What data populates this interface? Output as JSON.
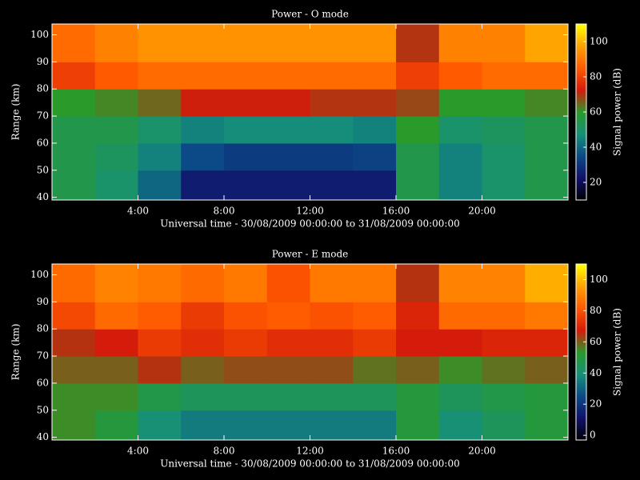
{
  "chart_data": [
    {
      "type": "heatmap",
      "title": "Power - O mode",
      "xlabel": "Universal time - 30/08/2009 00:00:00 to 31/08/2009 00:00:00",
      "ylabel": "Range (km)",
      "colorbar_label": "Signal power (dB)",
      "xlim": [
        0,
        24
      ],
      "ylim": [
        39,
        104
      ],
      "zlim": [
        10,
        110
      ],
      "xticks": [
        {
          "value": 4,
          "label": "4:00"
        },
        {
          "value": 8,
          "label": "8:00"
        },
        {
          "value": 12,
          "label": "12:00"
        },
        {
          "value": 16,
          "label": "16:00"
        },
        {
          "value": 20,
          "label": "20:00"
        }
      ],
      "yticks": [
        40,
        50,
        60,
        70,
        80,
        90,
        100
      ],
      "zticks": [
        20,
        40,
        60,
        80,
        100
      ],
      "x_bins": [
        0,
        2,
        4,
        6,
        8,
        10,
        12,
        14,
        16,
        18,
        20,
        22,
        24
      ],
      "y_bins": [
        39,
        50,
        60,
        70,
        80,
        90,
        104
      ],
      "colormap": [
        "#000000",
        "#10106a",
        "#0b4a86",
        "#16907a",
        "#2a9a2a",
        "#d41a0a",
        "#ff5a00",
        "#ffa000",
        "#ffff00"
      ],
      "values": [
        [
          55,
          50,
          40,
          25,
          25,
          25,
          25,
          25,
          55,
          45,
          50,
          55
        ],
        [
          55,
          52,
          45,
          35,
          32,
          32,
          32,
          33,
          55,
          45,
          50,
          55
        ],
        [
          55,
          55,
          50,
          45,
          47,
          47,
          47,
          45,
          60,
          50,
          52,
          55
        ],
        [
          60,
          62,
          65,
          72,
          72,
          72,
          70,
          70,
          68,
          60,
          60,
          62
        ],
        [
          80,
          85,
          88,
          88,
          88,
          88,
          88,
          88,
          80,
          85,
          88,
          88
        ],
        [
          88,
          92,
          95,
          95,
          95,
          95,
          95,
          95,
          70,
          92,
          92,
          98
        ]
      ]
    },
    {
      "type": "heatmap",
      "title": "Power - E mode",
      "xlabel": "Universal time - 30/08/2009 00:00:00 to 31/08/2009 00:00:00",
      "ylabel": "Range (km)",
      "colorbar_label": "Signal power (dB)",
      "xlim": [
        0,
        24
      ],
      "ylim": [
        39,
        104
      ],
      "zlim": [
        -3,
        110
      ],
      "xticks": [
        {
          "value": 4,
          "label": "4:00"
        },
        {
          "value": 8,
          "label": "8:00"
        },
        {
          "value": 12,
          "label": "12:00"
        },
        {
          "value": 16,
          "label": "16:00"
        },
        {
          "value": 20,
          "label": "20:00"
        }
      ],
      "yticks": [
        40,
        50,
        60,
        70,
        80,
        90,
        100
      ],
      "zticks": [
        0,
        20,
        40,
        60,
        80,
        100
      ],
      "x_bins": [
        0,
        2,
        4,
        6,
        8,
        10,
        12,
        14,
        16,
        18,
        20,
        22,
        24
      ],
      "y_bins": [
        39,
        50,
        60,
        70,
        80,
        90,
        104
      ],
      "colormap": [
        "#000000",
        "#10106a",
        "#0b4a86",
        "#16907a",
        "#2a9a2a",
        "#d41a0a",
        "#ff5a00",
        "#ffa000",
        "#ffff00"
      ],
      "values": [
        [
          55,
          50,
          40,
          35,
          35,
          35,
          35,
          35,
          50,
          40,
          45,
          50
        ],
        [
          55,
          55,
          48,
          45,
          45,
          45,
          45,
          45,
          50,
          45,
          48,
          50
        ],
        [
          60,
          60,
          65,
          60,
          62,
          62,
          62,
          58,
          60,
          55,
          58,
          60
        ],
        [
          65,
          68,
          75,
          72,
          75,
          72,
          72,
          75,
          68,
          68,
          70,
          70
        ],
        [
          78,
          85,
          82,
          75,
          80,
          82,
          80,
          82,
          70,
          85,
          85,
          88
        ],
        [
          85,
          90,
          88,
          85,
          88,
          80,
          88,
          88,
          65,
          90,
          90,
          98
        ]
      ]
    }
  ]
}
